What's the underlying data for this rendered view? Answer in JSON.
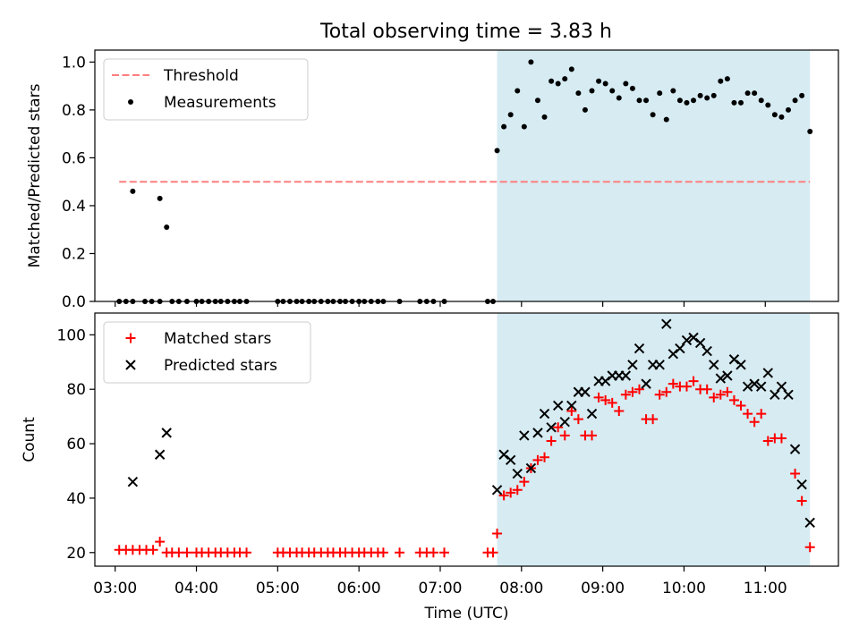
{
  "figure": {
    "title": "Total observing time = 3.83 h"
  },
  "colors": {
    "threshold": "#ff7f7f",
    "measurements": "#000000",
    "matched": "#ff0000",
    "predicted": "#000000",
    "span_fill": "#add8e6"
  },
  "chart_data": [
    {
      "type": "scatter",
      "panel": "top",
      "ylabel": "Matched/Predicted stars",
      "ylim": [
        0,
        1.05
      ],
      "yticks": [
        0.0,
        0.2,
        0.4,
        0.6,
        0.8,
        1.0
      ],
      "ytick_labels": [
        "0.0",
        "0.2",
        "0.4",
        "0.6",
        "0.8",
        "1.0"
      ],
      "xlim": [
        "02:45",
        "11:54"
      ],
      "grid": false,
      "legend_position": "top-left",
      "shaded_span": [
        "07:42",
        "11:33"
      ],
      "threshold": {
        "name": "Threshold",
        "value": 0.5,
        "x_range": [
          "03:03",
          "11:33"
        ],
        "style": "dashed"
      },
      "series": [
        {
          "name": "Measurements",
          "marker": "dot",
          "points": [
            [
              "03:03",
              0
            ],
            [
              "03:08",
              0
            ],
            [
              "03:13",
              0
            ],
            [
              "03:13",
              0.46
            ],
            [
              "03:22",
              0
            ],
            [
              "03:27",
              0
            ],
            [
              "03:33",
              0
            ],
            [
              "03:33",
              0.43
            ],
            [
              "03:38",
              0.31
            ],
            [
              "03:42",
              0
            ],
            [
              "03:47",
              0
            ],
            [
              "03:53",
              0
            ],
            [
              "04:00",
              0
            ],
            [
              "04:04",
              0
            ],
            [
              "04:09",
              0
            ],
            [
              "04:14",
              0
            ],
            [
              "04:18",
              0
            ],
            [
              "04:23",
              0
            ],
            [
              "04:28",
              0
            ],
            [
              "04:32",
              0
            ],
            [
              "04:37",
              0
            ],
            [
              "05:00",
              0
            ],
            [
              "05:04",
              0
            ],
            [
              "05:09",
              0
            ],
            [
              "05:14",
              0
            ],
            [
              "05:18",
              0
            ],
            [
              "05:23",
              0
            ],
            [
              "05:27",
              0
            ],
            [
              "05:32",
              0
            ],
            [
              "05:37",
              0
            ],
            [
              "05:41",
              0
            ],
            [
              "05:46",
              0
            ],
            [
              "05:50",
              0
            ],
            [
              "05:55",
              0
            ],
            [
              "06:00",
              0
            ],
            [
              "06:04",
              0
            ],
            [
              "06:09",
              0
            ],
            [
              "06:14",
              0
            ],
            [
              "06:18",
              0
            ],
            [
              "06:30",
              0
            ],
            [
              "06:45",
              0
            ],
            [
              "06:50",
              0
            ],
            [
              "06:55",
              0
            ],
            [
              "07:03",
              0
            ],
            [
              "07:35",
              0
            ],
            [
              "07:39",
              0
            ],
            [
              "07:42",
              0.63
            ],
            [
              "07:47",
              0.73
            ],
            [
              "07:52",
              0.78
            ],
            [
              "07:57",
              0.88
            ],
            [
              "08:02",
              0.73
            ],
            [
              "08:07",
              1.0
            ],
            [
              "08:12",
              0.84
            ],
            [
              "08:17",
              0.77
            ],
            [
              "08:22",
              0.92
            ],
            [
              "08:27",
              0.91
            ],
            [
              "08:32",
              0.93
            ],
            [
              "08:37",
              0.97
            ],
            [
              "08:42",
              0.87
            ],
            [
              "08:47",
              0.8
            ],
            [
              "08:52",
              0.88
            ],
            [
              "08:57",
              0.92
            ],
            [
              "09:02",
              0.91
            ],
            [
              "09:07",
              0.88
            ],
            [
              "09:12",
              0.85
            ],
            [
              "09:17",
              0.91
            ],
            [
              "09:22",
              0.89
            ],
            [
              "09:27",
              0.84
            ],
            [
              "09:32",
              0.84
            ],
            [
              "09:37",
              0.78
            ],
            [
              "09:42",
              0.87
            ],
            [
              "09:47",
              0.76
            ],
            [
              "09:52",
              0.88
            ],
            [
              "09:57",
              0.84
            ],
            [
              "10:02",
              0.83
            ],
            [
              "10:07",
              0.84
            ],
            [
              "10:12",
              0.86
            ],
            [
              "10:17",
              0.85
            ],
            [
              "10:22",
              0.86
            ],
            [
              "10:27",
              0.92
            ],
            [
              "10:32",
              0.93
            ],
            [
              "10:37",
              0.83
            ],
            [
              "10:42",
              0.83
            ],
            [
              "10:47",
              0.87
            ],
            [
              "10:52",
              0.87
            ],
            [
              "10:57",
              0.84
            ],
            [
              "11:02",
              0.82
            ],
            [
              "11:07",
              0.78
            ],
            [
              "11:12",
              0.77
            ],
            [
              "11:17",
              0.8
            ],
            [
              "11:22",
              0.84
            ],
            [
              "11:27",
              0.86
            ],
            [
              "11:33",
              0.71
            ]
          ]
        }
      ]
    },
    {
      "type": "scatter",
      "panel": "bottom",
      "xlabel": "Time (UTC)",
      "ylabel": "Count",
      "ylim": [
        15,
        108
      ],
      "yticks": [
        20,
        40,
        60,
        80,
        100
      ],
      "ytick_labels": [
        "20",
        "40",
        "60",
        "80",
        "100"
      ],
      "xlim": [
        "02:45",
        "11:54"
      ],
      "xticks": [
        "03:00",
        "04:00",
        "05:00",
        "06:00",
        "07:00",
        "08:00",
        "09:00",
        "10:00",
        "11:00"
      ],
      "xtick_labels": [
        "03:00",
        "04:00",
        "05:00",
        "06:00",
        "07:00",
        "08:00",
        "09:00",
        "10:00",
        "11:00"
      ],
      "grid": false,
      "legend_position": "top-left",
      "shaded_span": [
        "07:42",
        "11:33"
      ],
      "series": [
        {
          "name": "Matched stars",
          "marker": "plus",
          "points": [
            [
              "03:03",
              21
            ],
            [
              "03:08",
              21
            ],
            [
              "03:13",
              21
            ],
            [
              "03:18",
              21
            ],
            [
              "03:23",
              21
            ],
            [
              "03:28",
              21
            ],
            [
              "03:33",
              24
            ],
            [
              "03:38",
              20
            ],
            [
              "03:42",
              20
            ],
            [
              "03:47",
              20
            ],
            [
              "03:53",
              20
            ],
            [
              "04:00",
              20
            ],
            [
              "04:04",
              20
            ],
            [
              "04:09",
              20
            ],
            [
              "04:14",
              20
            ],
            [
              "04:18",
              20
            ],
            [
              "04:23",
              20
            ],
            [
              "04:28",
              20
            ],
            [
              "04:32",
              20
            ],
            [
              "04:37",
              20
            ],
            [
              "05:00",
              20
            ],
            [
              "05:04",
              20
            ],
            [
              "05:09",
              20
            ],
            [
              "05:14",
              20
            ],
            [
              "05:18",
              20
            ],
            [
              "05:23",
              20
            ],
            [
              "05:27",
              20
            ],
            [
              "05:32",
              20
            ],
            [
              "05:37",
              20
            ],
            [
              "05:41",
              20
            ],
            [
              "05:46",
              20
            ],
            [
              "05:50",
              20
            ],
            [
              "05:55",
              20
            ],
            [
              "06:00",
              20
            ],
            [
              "06:04",
              20
            ],
            [
              "06:09",
              20
            ],
            [
              "06:14",
              20
            ],
            [
              "06:18",
              20
            ],
            [
              "06:30",
              20
            ],
            [
              "06:45",
              20
            ],
            [
              "06:50",
              20
            ],
            [
              "06:55",
              20
            ],
            [
              "07:03",
              20
            ],
            [
              "07:35",
              20
            ],
            [
              "07:39",
              20
            ],
            [
              "07:42",
              27
            ],
            [
              "07:47",
              41
            ],
            [
              "07:52",
              42
            ],
            [
              "07:57",
              43
            ],
            [
              "08:02",
              46
            ],
            [
              "08:07",
              51
            ],
            [
              "08:12",
              54
            ],
            [
              "08:17",
              55
            ],
            [
              "08:22",
              61
            ],
            [
              "08:27",
              66
            ],
            [
              "08:32",
              63
            ],
            [
              "08:37",
              72
            ],
            [
              "08:42",
              69
            ],
            [
              "08:47",
              63
            ],
            [
              "08:52",
              63
            ],
            [
              "08:57",
              77
            ],
            [
              "09:02",
              76
            ],
            [
              "09:07",
              75
            ],
            [
              "09:12",
              72
            ],
            [
              "09:17",
              78
            ],
            [
              "09:22",
              79
            ],
            [
              "09:27",
              80
            ],
            [
              "09:32",
              69
            ],
            [
              "09:37",
              69
            ],
            [
              "09:42",
              78
            ],
            [
              "09:47",
              79
            ],
            [
              "09:52",
              82
            ],
            [
              "09:57",
              81
            ],
            [
              "10:02",
              81
            ],
            [
              "10:07",
              83
            ],
            [
              "10:12",
              80
            ],
            [
              "10:17",
              80
            ],
            [
              "10:22",
              77
            ],
            [
              "10:27",
              78
            ],
            [
              "10:32",
              79
            ],
            [
              "10:37",
              76
            ],
            [
              "10:42",
              74
            ],
            [
              "10:47",
              71
            ],
            [
              "10:52",
              68
            ],
            [
              "10:57",
              71
            ],
            [
              "11:02",
              61
            ],
            [
              "11:07",
              62
            ],
            [
              "11:12",
              62
            ],
            [
              "11:22",
              49
            ],
            [
              "11:27",
              39
            ],
            [
              "11:33",
              22
            ]
          ]
        },
        {
          "name": "Predicted stars",
          "marker": "x",
          "points": [
            [
              "03:13",
              46
            ],
            [
              "03:33",
              56
            ],
            [
              "03:38",
              64
            ],
            [
              "07:42",
              43
            ],
            [
              "07:47",
              56
            ],
            [
              "07:52",
              54
            ],
            [
              "07:57",
              49
            ],
            [
              "08:02",
              63
            ],
            [
              "08:07",
              51
            ],
            [
              "08:12",
              64
            ],
            [
              "08:17",
              71
            ],
            [
              "08:22",
              66
            ],
            [
              "08:27",
              74
            ],
            [
              "08:32",
              68
            ],
            [
              "08:37",
              74
            ],
            [
              "08:42",
              79
            ],
            [
              "08:47",
              79
            ],
            [
              "08:52",
              71
            ],
            [
              "08:57",
              83
            ],
            [
              "09:02",
              83
            ],
            [
              "09:07",
              85
            ],
            [
              "09:12",
              85
            ],
            [
              "09:17",
              85
            ],
            [
              "09:22",
              89
            ],
            [
              "09:27",
              95
            ],
            [
              "09:32",
              82
            ],
            [
              "09:37",
              89
            ],
            [
              "09:42",
              89
            ],
            [
              "09:47",
              104
            ],
            [
              "09:52",
              93
            ],
            [
              "09:57",
              95
            ],
            [
              "10:02",
              98
            ],
            [
              "10:07",
              99
            ],
            [
              "10:12",
              97
            ],
            [
              "10:17",
              94
            ],
            [
              "10:22",
              89
            ],
            [
              "10:27",
              84
            ],
            [
              "10:32",
              85
            ],
            [
              "10:37",
              91
            ],
            [
              "10:42",
              89
            ],
            [
              "10:47",
              81
            ],
            [
              "10:52",
              82
            ],
            [
              "10:57",
              81
            ],
            [
              "11:02",
              86
            ],
            [
              "11:07",
              78
            ],
            [
              "11:12",
              81
            ],
            [
              "11:17",
              78
            ],
            [
              "11:22",
              58
            ],
            [
              "11:27",
              45
            ],
            [
              "11:33",
              31
            ]
          ]
        }
      ]
    }
  ]
}
